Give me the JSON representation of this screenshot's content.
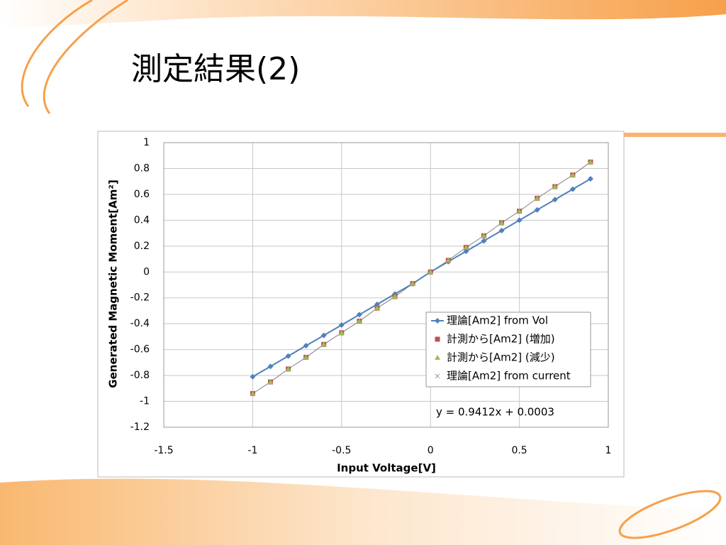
{
  "slide_title": "測定結果(2)",
  "chart_data": {
    "type": "line",
    "x_label": "Input Voltage[V]",
    "y_label": "Generated Magnetic Moment[Am²]",
    "annotation": "y = 0.9412x + 0.0003",
    "x": [
      -1,
      -0.9,
      -0.8,
      -0.7,
      -0.6,
      -0.5,
      -0.4,
      -0.3,
      -0.2,
      -0.1,
      0,
      0.1,
      0.2,
      0.3,
      0.4,
      0.5,
      0.6,
      0.7,
      0.8,
      0.9
    ],
    "series": [
      {
        "name": "理論[Am2] from Vol",
        "color": "#4f81bd",
        "marker": "diamond",
        "values": [
          -0.81,
          -0.73,
          -0.65,
          -0.57,
          -0.49,
          -0.41,
          -0.33,
          -0.25,
          -0.17,
          -0.09,
          0,
          0.08,
          0.16,
          0.24,
          0.32,
          0.4,
          0.48,
          0.56,
          0.64,
          0.72
        ]
      },
      {
        "name": "計測から[Am2]  (増加)",
        "color": "#c0504d",
        "marker": "square",
        "values": [
          -0.94,
          -0.85,
          -0.75,
          -0.66,
          -0.56,
          -0.47,
          -0.38,
          -0.28,
          -0.19,
          -0.09,
          0,
          0.09,
          0.19,
          0.28,
          0.38,
          0.47,
          0.57,
          0.66,
          0.75,
          0.85
        ]
      },
      {
        "name": "計測から[Am2] (減少)",
        "color": "#9bbb59",
        "marker": "triangle",
        "values": [
          -0.94,
          -0.85,
          -0.75,
          -0.66,
          -0.56,
          -0.47,
          -0.38,
          -0.28,
          -0.19,
          -0.09,
          0,
          0.09,
          0.19,
          0.28,
          0.38,
          0.47,
          0.57,
          0.66,
          0.75,
          0.85
        ]
      },
      {
        "name": "理論[Am2] from current",
        "color": "#a6a6a6",
        "marker": "x",
        "values": [
          -0.94,
          -0.85,
          -0.75,
          -0.66,
          -0.56,
          -0.47,
          -0.38,
          -0.28,
          -0.19,
          -0.09,
          0,
          0.09,
          0.19,
          0.28,
          0.38,
          0.47,
          0.57,
          0.66,
          0.75,
          0.85
        ]
      }
    ],
    "xlim": [
      -1.5,
      1
    ],
    "xticks": [
      -1.5,
      -1,
      -0.5,
      0,
      0.5,
      1
    ],
    "ylim": [
      -1.2,
      1
    ],
    "yticks": [
      -1.2,
      -1,
      -0.8,
      -0.6,
      -0.4,
      -0.2,
      0,
      0.2,
      0.4,
      0.6,
      0.8,
      1
    ],
    "grid": true
  }
}
